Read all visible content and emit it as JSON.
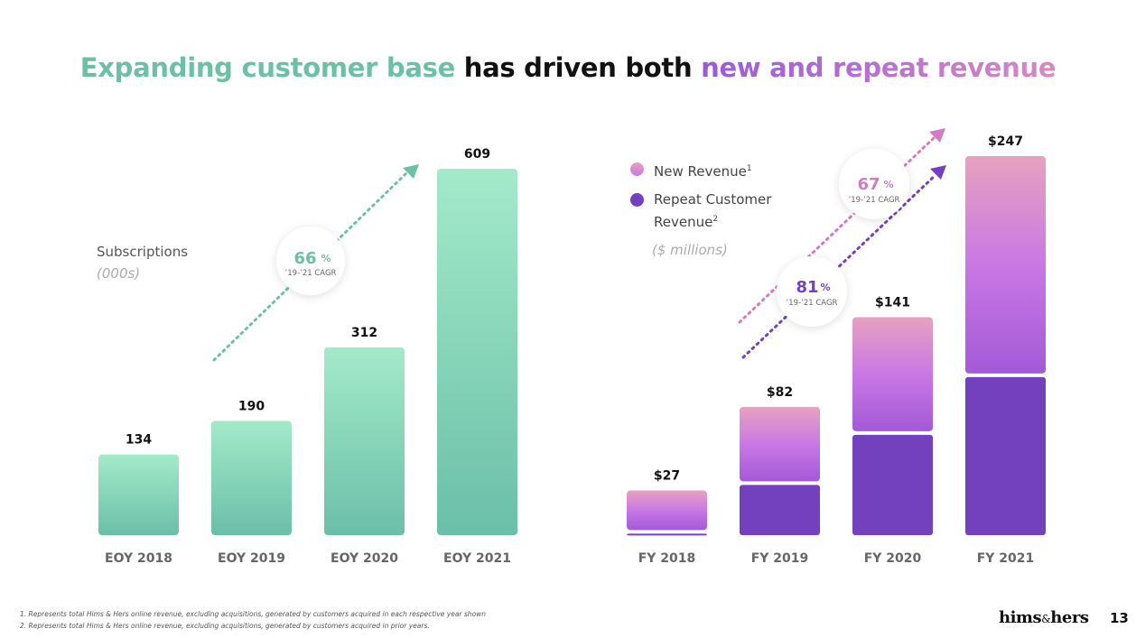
{
  "title": {
    "part1": "Expanding customer base",
    "part2": " has driven both ",
    "part3": "new and repeat revenue"
  },
  "colors": {
    "teal_top": "#a3eaca",
    "teal_bottom": "#6bbfa8",
    "teal_accent": "#6cc1a3",
    "purple_new_top": "#e6a2bf",
    "purple_new_mid": "#c978e4",
    "purple_new_bottom": "#a35ad8",
    "purple_repeat": "#7340be",
    "pink_arrow": "#d07cc4",
    "purple_arrow": "#7340be"
  },
  "left_chart": {
    "label": "Subscriptions",
    "units": "(000s)",
    "cagr": {
      "value": "66",
      "pct": "%",
      "label": "’19-’21 CAGR"
    }
  },
  "right_chart": {
    "legend": [
      {
        "text": "New Revenue",
        "sup": "1"
      },
      {
        "text_line1": "Repeat Customer",
        "text_line2": "Revenue",
        "sup": "2"
      }
    ],
    "units": "($ millions)",
    "cagr_new": {
      "value": "67",
      "pct": "%",
      "label": "’19-’21 CAGR"
    },
    "cagr_repeat": {
      "value": "81",
      "pct": "%",
      "label": "’19-’21 CAGR"
    }
  },
  "chart_data": [
    {
      "type": "bar",
      "categories": [
        "EOY 2018",
        "EOY 2019",
        "EOY 2020",
        "EOY 2021"
      ],
      "values": [
        134,
        190,
        312,
        609
      ],
      "value_labels": [
        "134",
        "190",
        "312",
        "609"
      ],
      "ylim": [
        0,
        609
      ],
      "ylabel": "Subscriptions"
    },
    {
      "type": "bar",
      "stacked": true,
      "categories": [
        "FY 2018",
        "FY 2019",
        "FY 2020",
        "FY 2021"
      ],
      "totals": [
        27,
        82,
        141,
        247
      ],
      "total_labels": [
        "$27",
        "$82",
        "$141",
        "$247"
      ],
      "series": [
        {
          "name": "Repeat Customer Revenue",
          "values": [
            1,
            33,
            66,
            104
          ]
        },
        {
          "name": "New Revenue",
          "values": [
            26,
            49,
            75,
            143
          ]
        }
      ],
      "ylim": [
        0,
        247
      ]
    }
  ],
  "footnotes": [
    "1.  Represents total Hims & Hers online revenue, excluding acquisitions, generated by customers acquired in each respective year shown",
    "2.  Represents total Hims & Hers online revenue, excluding acquisitions, generated by customers acquired in prior years."
  ],
  "logo": {
    "left": "hims",
    "amp": "&",
    "right": "hers"
  },
  "page_number": "13"
}
